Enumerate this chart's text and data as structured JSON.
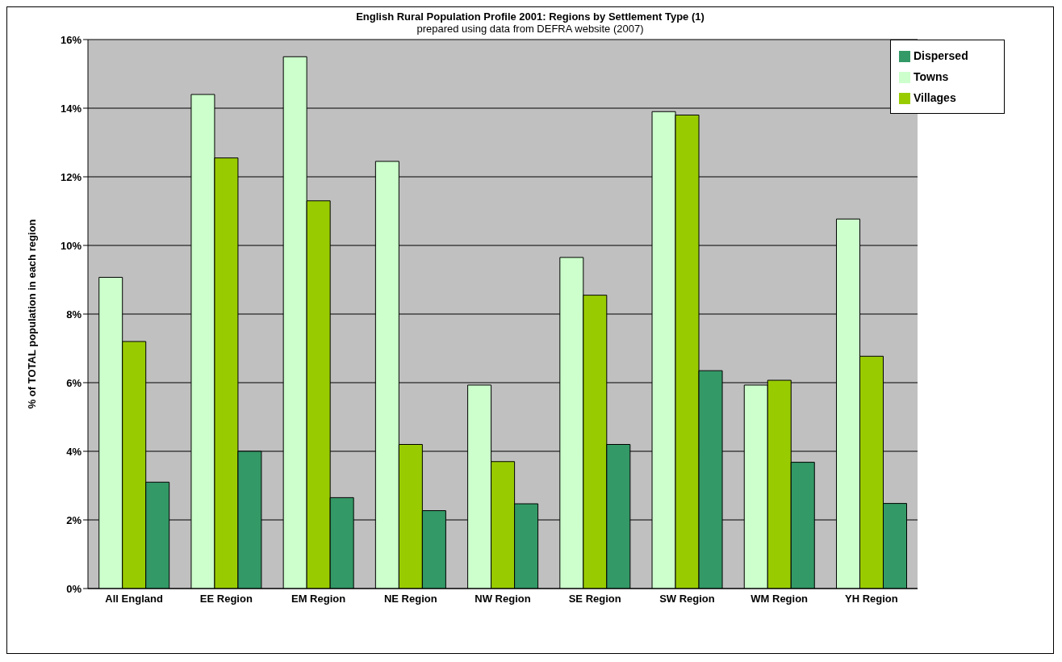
{
  "chart_data": {
    "type": "bar",
    "title": "English Rural Population Profile 2001: Regions by Settlement Type (1)",
    "subtitle": "prepared using data from DEFRA website (2007)",
    "ylabel": "% of TOTAL population in each region",
    "categories": [
      "All England",
      "EE Region",
      "EM Region",
      "NE Region",
      "NW Region",
      "SE Region",
      "SW Region",
      "WM Region",
      "YH Region"
    ],
    "series": [
      {
        "name": "Towns",
        "color": "#ccffcc",
        "values": [
          9.07,
          14.4,
          15.5,
          12.45,
          5.93,
          9.65,
          13.9,
          5.93,
          10.77
        ]
      },
      {
        "name": "Villages",
        "color": "#99cc00",
        "values": [
          7.2,
          12.55,
          11.3,
          4.2,
          3.7,
          8.55,
          13.8,
          6.07,
          6.77
        ]
      },
      {
        "name": "Dispersed",
        "color": "#339966",
        "values": [
          3.1,
          4.0,
          2.65,
          2.27,
          2.47,
          4.2,
          6.35,
          3.68,
          2.48
        ]
      }
    ],
    "ylim": [
      0,
      16
    ],
    "yticks": [
      {
        "value": 0,
        "label": "0%"
      },
      {
        "value": 2,
        "label": "2%"
      },
      {
        "value": 4,
        "label": "4%"
      },
      {
        "value": 6,
        "label": "6%"
      },
      {
        "value": 8,
        "label": "8%"
      },
      {
        "value": 10,
        "label": "10%"
      },
      {
        "value": 12,
        "label": "12%"
      },
      {
        "value": 14,
        "label": "14%"
      },
      {
        "value": 16,
        "label": "16%"
      }
    ],
    "grid": "y",
    "legend": "top right"
  }
}
